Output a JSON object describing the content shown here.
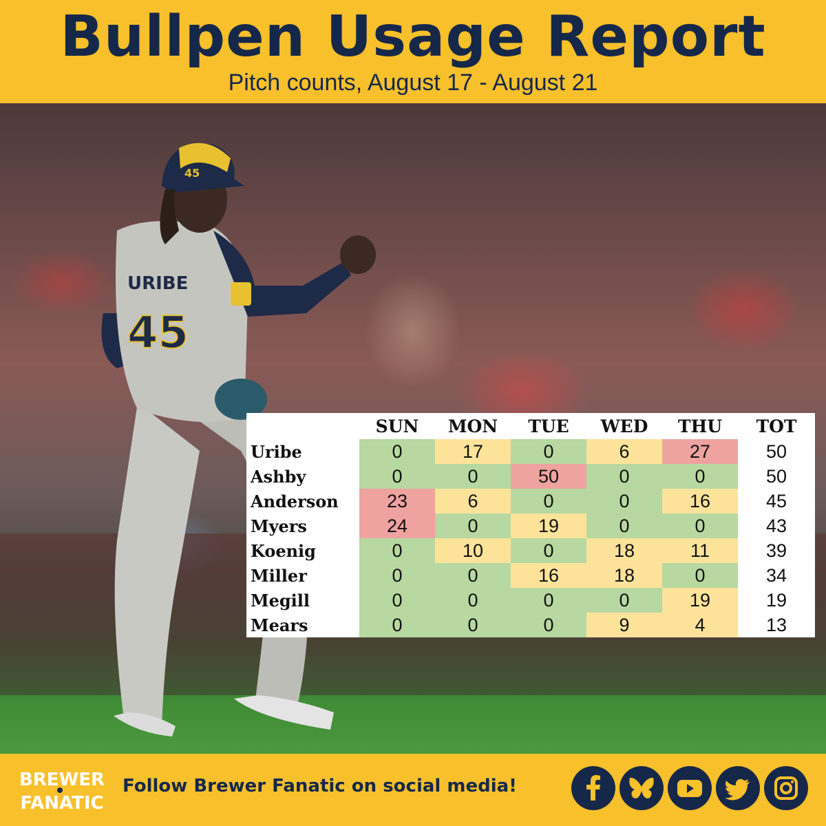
{
  "header": {
    "title": "Bullpen Usage Report",
    "subtitle": "Pitch counts, August 17 - August 21"
  },
  "player": {
    "jersey_name": "URIBE",
    "jersey_number": "45",
    "cap_number": "45"
  },
  "table": {
    "columns": [
      "SUN",
      "MON",
      "TUE",
      "WED",
      "THU",
      "TOT"
    ],
    "rows": [
      {
        "name": "Uribe",
        "values": [
          "0",
          "17",
          "0",
          "6",
          "27"
        ],
        "total": "50"
      },
      {
        "name": "Ashby",
        "values": [
          "0",
          "0",
          "50",
          "0",
          "0"
        ],
        "total": "50"
      },
      {
        "name": "Anderson",
        "values": [
          "23",
          "6",
          "0",
          "0",
          "16"
        ],
        "total": "45"
      },
      {
        "name": "Myers",
        "values": [
          "24",
          "0",
          "19",
          "0",
          "0"
        ],
        "total": "43"
      },
      {
        "name": "Koenig",
        "values": [
          "0",
          "10",
          "0",
          "18",
          "11"
        ],
        "total": "39"
      },
      {
        "name": "Miller",
        "values": [
          "0",
          "0",
          "16",
          "18",
          "0"
        ],
        "total": "34"
      },
      {
        "name": "Megill",
        "values": [
          "0",
          "0",
          "0",
          "0",
          "19"
        ],
        "total": "19"
      },
      {
        "name": "Mears",
        "values": [
          "0",
          "0",
          "0",
          "9",
          "4"
        ],
        "total": "13"
      }
    ],
    "colors": {
      "low": "#b7d8a0",
      "medium": "#fde39a",
      "high": "#eea3a0"
    }
  },
  "footer": {
    "logo_line1": "BREWER",
    "logo_line2": "FANATIC",
    "follow_text": "Follow Brewer Fanatic on social media!",
    "social_icons": [
      "facebook-icon",
      "bluesky-icon",
      "youtube-icon",
      "twitter-icon",
      "instagram-icon"
    ]
  },
  "colors": {
    "brand_yellow": "#f8c02b",
    "brand_navy": "#16284a"
  }
}
